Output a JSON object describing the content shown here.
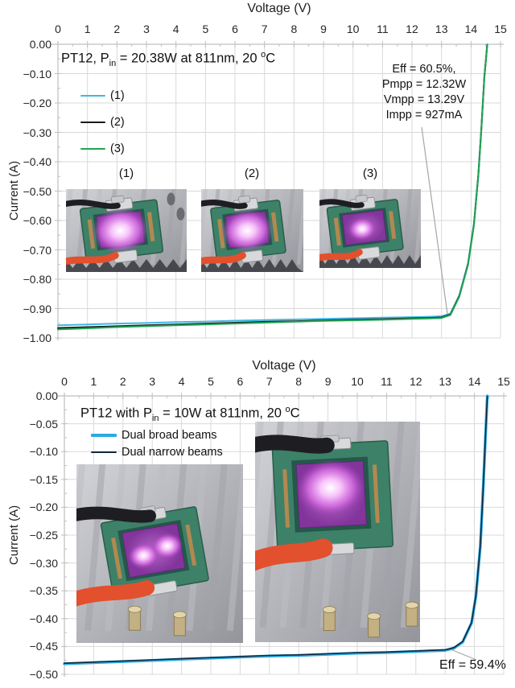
{
  "colors": {
    "grid": "#d9d9d9",
    "axis": "#bfbfbf",
    "leader": "#a6a6a6",
    "cyan": "#3eb7e8",
    "black": "#1a1a1a",
    "green": "#21a453",
    "broad_cyan": "#29abe2",
    "narrow_dark": "#14283e"
  },
  "chart_data": [
    {
      "type": "line",
      "title": "PT12, Pin = 20.38W at 811nm, 20 °C",
      "xlabel": "Voltage (V)",
      "ylabel": "Current (A)",
      "xlim": [
        0,
        15
      ],
      "ylim": [
        -1.0,
        0.0
      ],
      "x_tick_step": 1,
      "y_tick_step": 0.1,
      "grid": true,
      "legend_position": "inside-upper-left",
      "annotations": [
        "Eff = 60.5%,",
        "Pmpp = 12.32W",
        "Vmpp = 13.29V",
        "Impp = 927mA"
      ],
      "series": [
        {
          "name": "(1)",
          "color": "#3eb7e8",
          "lw": 2,
          "x": [
            0,
            1,
            2,
            3,
            4,
            5,
            6,
            7,
            8,
            9,
            10,
            11,
            12,
            12.5,
            13,
            13.3,
            13.6,
            13.9,
            14.1,
            14.25,
            14.35,
            14.45,
            14.55
          ],
          "y": [
            -0.957,
            -0.954,
            -0.951,
            -0.949,
            -0.946,
            -0.944,
            -0.941,
            -0.939,
            -0.937,
            -0.935,
            -0.933,
            -0.931,
            -0.929,
            -0.928,
            -0.926,
            -0.917,
            -0.855,
            -0.745,
            -0.61,
            -0.44,
            -0.285,
            -0.11,
            0.0
          ]
        },
        {
          "name": "(2)",
          "color": "#1a1a1a",
          "lw": 2,
          "x": [
            0,
            1,
            2,
            3,
            4,
            5,
            6,
            7,
            8,
            9,
            10,
            11,
            12,
            12.5,
            13,
            13.3,
            13.6,
            13.9,
            14.1,
            14.25,
            14.35,
            14.45,
            14.55
          ],
          "y": [
            -0.966,
            -0.963,
            -0.96,
            -0.957,
            -0.954,
            -0.951,
            -0.948,
            -0.945,
            -0.943,
            -0.94,
            -0.938,
            -0.936,
            -0.933,
            -0.932,
            -0.93,
            -0.92,
            -0.858,
            -0.748,
            -0.613,
            -0.443,
            -0.288,
            -0.113,
            -0.002
          ]
        },
        {
          "name": "(3)",
          "color": "#21a453",
          "lw": 2,
          "x": [
            0,
            1,
            2,
            3,
            4,
            5,
            6,
            7,
            8,
            9,
            10,
            11,
            12,
            12.5,
            13,
            13.3,
            13.6,
            13.9,
            14.1,
            14.25,
            14.35,
            14.45,
            14.55
          ],
          "y": [
            -0.971,
            -0.967,
            -0.963,
            -0.96,
            -0.957,
            -0.954,
            -0.951,
            -0.948,
            -0.945,
            -0.942,
            -0.94,
            -0.938,
            -0.935,
            -0.934,
            -0.932,
            -0.922,
            -0.86,
            -0.75,
            -0.615,
            -0.445,
            -0.29,
            -0.115,
            -0.003
          ]
        }
      ]
    },
    {
      "type": "line",
      "title": "PT12 with Pin = 10W at 811nm, 20 °C",
      "xlabel": "Voltage (V)",
      "ylabel": "Current (A)",
      "xlim": [
        0,
        15
      ],
      "ylim": [
        -0.5,
        0.0
      ],
      "x_tick_step": 1,
      "y_tick_step": 0.05,
      "grid": true,
      "legend_position": "inside-upper-left",
      "annotations": [
        "Eff = 59.4%"
      ],
      "series": [
        {
          "name": "Dual broad beams",
          "color": "#29abe2",
          "lw": 3.5,
          "x": [
            0,
            1,
            2,
            3,
            4,
            5,
            6,
            7,
            8,
            9,
            10,
            11,
            12,
            12.5,
            13,
            13.3,
            13.6,
            13.9,
            14.05,
            14.2,
            14.3,
            14.38,
            14.44
          ],
          "y": [
            -0.481,
            -0.479,
            -0.477,
            -0.475,
            -0.473,
            -0.471,
            -0.469,
            -0.467,
            -0.466,
            -0.464,
            -0.462,
            -0.461,
            -0.459,
            -0.458,
            -0.457,
            -0.453,
            -0.442,
            -0.408,
            -0.36,
            -0.27,
            -0.165,
            -0.07,
            0.0
          ]
        },
        {
          "name": "Dual narrow beams",
          "color": "#14283e",
          "lw": 1.6,
          "x": [
            0,
            1,
            2,
            3,
            4,
            5,
            6,
            7,
            8,
            9,
            10,
            11,
            12,
            12.5,
            13,
            13.3,
            13.6,
            13.9,
            14.05,
            14.2,
            14.3,
            14.38,
            14.44
          ],
          "y": [
            -0.48,
            -0.478,
            -0.476,
            -0.474,
            -0.472,
            -0.47,
            -0.468,
            -0.466,
            -0.465,
            -0.463,
            -0.461,
            -0.46,
            -0.458,
            -0.457,
            -0.456,
            -0.452,
            -0.441,
            -0.407,
            -0.359,
            -0.269,
            -0.164,
            -0.069,
            -0.001
          ]
        }
      ]
    }
  ],
  "top": {
    "x_title": "Voltage (V)",
    "y_title": "Current (A)",
    "x_tick_labels": [
      "0",
      "1",
      "2",
      "3",
      "4",
      "5",
      "6",
      "7",
      "8",
      "9",
      "10",
      "11",
      "12",
      "13",
      "14",
      "15"
    ],
    "y_tick_labels": [
      "0.00",
      "−0.10",
      "−0.20",
      "−0.30",
      "−0.40",
      "−0.50",
      "−0.60",
      "−0.70",
      "−0.80",
      "−0.90",
      "−1.00"
    ],
    "title": {
      "pre": "PT12, P",
      "sub": "in",
      "mid": " = 20.38W at 811nm, 20 ",
      "sup": "o",
      "end": "C"
    },
    "legend": [
      {
        "label": "(1)"
      },
      {
        "label": "(2)"
      },
      {
        "label": "(3)"
      }
    ],
    "inset_labels": [
      "(1)",
      "(2)",
      "(3)"
    ],
    "annotation_lines": [
      "Eff = 60.5%,",
      "Pmpp = 12.32W",
      "Vmpp = 13.29V",
      "Impp = 927mA"
    ]
  },
  "bottom": {
    "x_title": "Voltage (V)",
    "y_title": "Current (A)",
    "x_tick_labels": [
      "0",
      "1",
      "2",
      "3",
      "4",
      "5",
      "6",
      "7",
      "8",
      "9",
      "10",
      "11",
      "12",
      "13",
      "14",
      "15"
    ],
    "y_tick_labels": [
      "0.00",
      "−0.05",
      "−0.10",
      "−0.15",
      "−0.20",
      "−0.25",
      "−0.30",
      "−0.35",
      "−0.40",
      "−0.45",
      "−0.50"
    ],
    "title": {
      "pre": "PT12 with P",
      "sub": "in",
      "mid": " = 10W at 811nm, 20 ",
      "sup": "o",
      "end": "C"
    },
    "legend": [
      {
        "label": "Dual broad beams"
      },
      {
        "label": "Dual narrow beams"
      }
    ],
    "annotation": "Eff = 59.4%"
  }
}
